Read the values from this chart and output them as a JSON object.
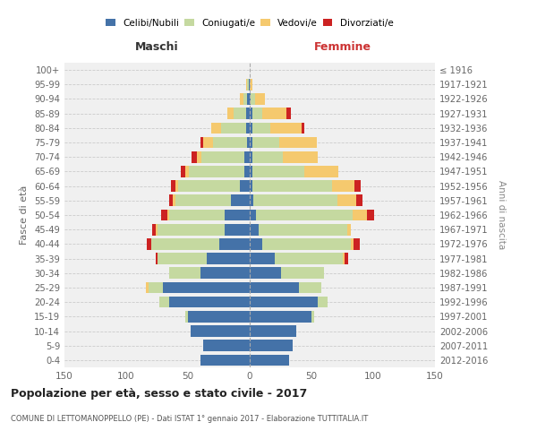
{
  "age_groups": [
    "0-4",
    "5-9",
    "10-14",
    "15-19",
    "20-24",
    "25-29",
    "30-34",
    "35-39",
    "40-44",
    "45-49",
    "50-54",
    "55-59",
    "60-64",
    "65-69",
    "70-74",
    "75-79",
    "80-84",
    "85-89",
    "90-94",
    "95-99",
    "100+"
  ],
  "birth_years": [
    "2012-2016",
    "2007-2011",
    "2002-2006",
    "1997-2001",
    "1992-1996",
    "1987-1991",
    "1982-1986",
    "1977-1981",
    "1972-1976",
    "1967-1971",
    "1962-1966",
    "1957-1961",
    "1952-1956",
    "1947-1951",
    "1942-1946",
    "1937-1941",
    "1932-1936",
    "1927-1931",
    "1922-1926",
    "1917-1921",
    "≤ 1916"
  ],
  "maschi": {
    "celibi": [
      40,
      38,
      48,
      50,
      65,
      70,
      40,
      35,
      25,
      20,
      20,
      15,
      8,
      4,
      4,
      2,
      3,
      3,
      2,
      1,
      0
    ],
    "coniugati": [
      0,
      0,
      0,
      2,
      8,
      12,
      25,
      40,
      55,
      55,
      45,
      45,
      50,
      45,
      35,
      28,
      20,
      10,
      3,
      1,
      0
    ],
    "vedovi": [
      0,
      0,
      0,
      0,
      0,
      2,
      0,
      0,
      0,
      1,
      2,
      2,
      2,
      3,
      4,
      8,
      8,
      5,
      3,
      1,
      0
    ],
    "divorziati": [
      0,
      0,
      0,
      0,
      0,
      0,
      0,
      1,
      3,
      3,
      5,
      3,
      4,
      4,
      4,
      2,
      0,
      0,
      0,
      0,
      0
    ]
  },
  "femmine": {
    "nubili": [
      32,
      35,
      38,
      50,
      55,
      40,
      25,
      20,
      10,
      7,
      5,
      3,
      2,
      2,
      2,
      2,
      2,
      2,
      1,
      0,
      0
    ],
    "coniugate": [
      0,
      0,
      0,
      2,
      8,
      18,
      35,
      55,
      72,
      72,
      78,
      68,
      65,
      42,
      25,
      22,
      15,
      8,
      3,
      0,
      0
    ],
    "vedove": [
      0,
      0,
      0,
      0,
      0,
      0,
      0,
      2,
      2,
      3,
      12,
      15,
      18,
      28,
      28,
      30,
      25,
      20,
      8,
      2,
      0
    ],
    "divorziate": [
      0,
      0,
      0,
      0,
      0,
      0,
      0,
      3,
      5,
      0,
      6,
      5,
      5,
      0,
      0,
      0,
      2,
      3,
      0,
      0,
      0
    ]
  },
  "colors": {
    "celibi_nubili": "#4472a8",
    "coniugati": "#c5d9a0",
    "vedovi": "#f5c96e",
    "divorziati": "#cc2222"
  },
  "title": "Popolazione per età, sesso e stato civile - 2017",
  "subtitle": "COMUNE DI LETTOMANOPPELLO (PE) - Dati ISTAT 1° gennaio 2017 - Elaborazione TUTTITALIA.IT",
  "xlabel_left": "Maschi",
  "xlabel_right": "Femmine",
  "ylabel_left": "Fasce di età",
  "ylabel_right": "Anni di nascita",
  "xlim": 150,
  "bg_color": "#f0f0f0",
  "legend": [
    "Celibi/Nubili",
    "Coniugati/e",
    "Vedovi/e",
    "Divorziati/e"
  ]
}
